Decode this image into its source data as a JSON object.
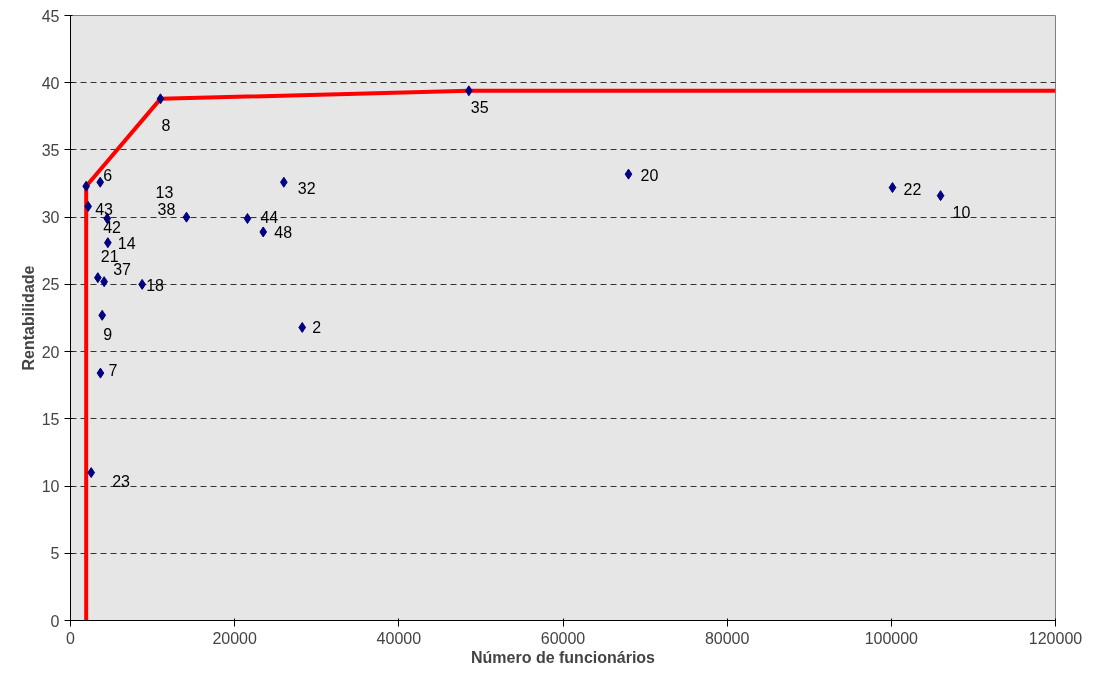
{
  "chart_data": {
    "type": "scatter",
    "xlabel": "Número de funcionários",
    "ylabel": "Rentabilidade",
    "xlim": [
      0,
      120000
    ],
    "xticks": [
      0,
      20000,
      40000,
      60000,
      80000,
      100000,
      120000
    ],
    "ylim": [
      0,
      45
    ],
    "yticks": [
      0,
      5,
      10,
      15,
      20,
      25,
      30,
      35,
      40,
      45
    ],
    "grid": "y",
    "marker": "diamond",
    "series": [
      {
        "color": "#000080",
        "x": [
          1910,
          3620,
          2150,
          4470,
          4550,
          3330,
          4100,
          8730,
          3860,
          3650,
          2520,
          14130,
          10960,
          48530,
          25990,
          21560,
          23480,
          28230,
          67980,
          100140,
          106000
        ],
        "values": [
          32.3,
          32.6,
          30.8,
          29.9,
          28.1,
          25.5,
          25.2,
          25.0,
          22.7,
          18.4,
          11.0,
          30.0,
          38.8,
          39.4,
          32.6,
          29.9,
          28.9,
          21.8,
          33.2,
          32.2,
          31.6
        ]
      },
      {
        "type": "line",
        "color": "#ff0000",
        "marker": "none",
        "line_style": "solid",
        "x": [
          1910,
          1910,
          10960,
          48530,
          120000
        ],
        "values": [
          0,
          32.3,
          38.8,
          39.4,
          39.4
        ]
      }
    ],
    "annotations": [
      "13",
      {
        "text": "6",
        "x": 3620,
        "y": 32.6
      },
      {
        "text": "43",
        "x": 2150,
        "y": 30.8
      },
      {
        "text": "42",
        "x": 4470,
        "y": 29.9
      },
      {
        "text": "14",
        "x": 4550,
        "y": 28.1
      },
      {
        "text": "21",
        "x": 3330,
        "y": 25.5
      },
      {
        "text": "37",
        "x": 4100,
        "y": 25.2
      },
      {
        "text": "18",
        "x": 8730,
        "y": 25.0
      },
      {
        "text": "9",
        "x": 3860,
        "y": 22.7
      },
      {
        "text": "7",
        "x": 3650,
        "y": 18.4
      },
      {
        "text": "23",
        "x": 2520,
        "y": 11.0
      },
      {
        "text": "38",
        "x": 14130,
        "y": 30.0
      },
      {
        "text": "8",
        "x": 10960,
        "y": 38.8
      },
      {
        "text": "35",
        "x": 48530,
        "y": 39.4
      },
      {
        "text": "32",
        "x": 25990,
        "y": 32.6
      },
      {
        "text": "44",
        "x": 21560,
        "y": 29.9
      },
      {
        "text": "48",
        "x": 23480,
        "y": 28.9
      },
      {
        "text": "2",
        "x": 28230,
        "y": 21.8
      },
      {
        "text": "20",
        "x": 67980,
        "y": 33.2
      },
      {
        "text": "22",
        "x": 100140,
        "y": 32.2
      },
      {
        "text": "10",
        "x": 106000,
        "y": 31.6
      }
    ]
  }
}
